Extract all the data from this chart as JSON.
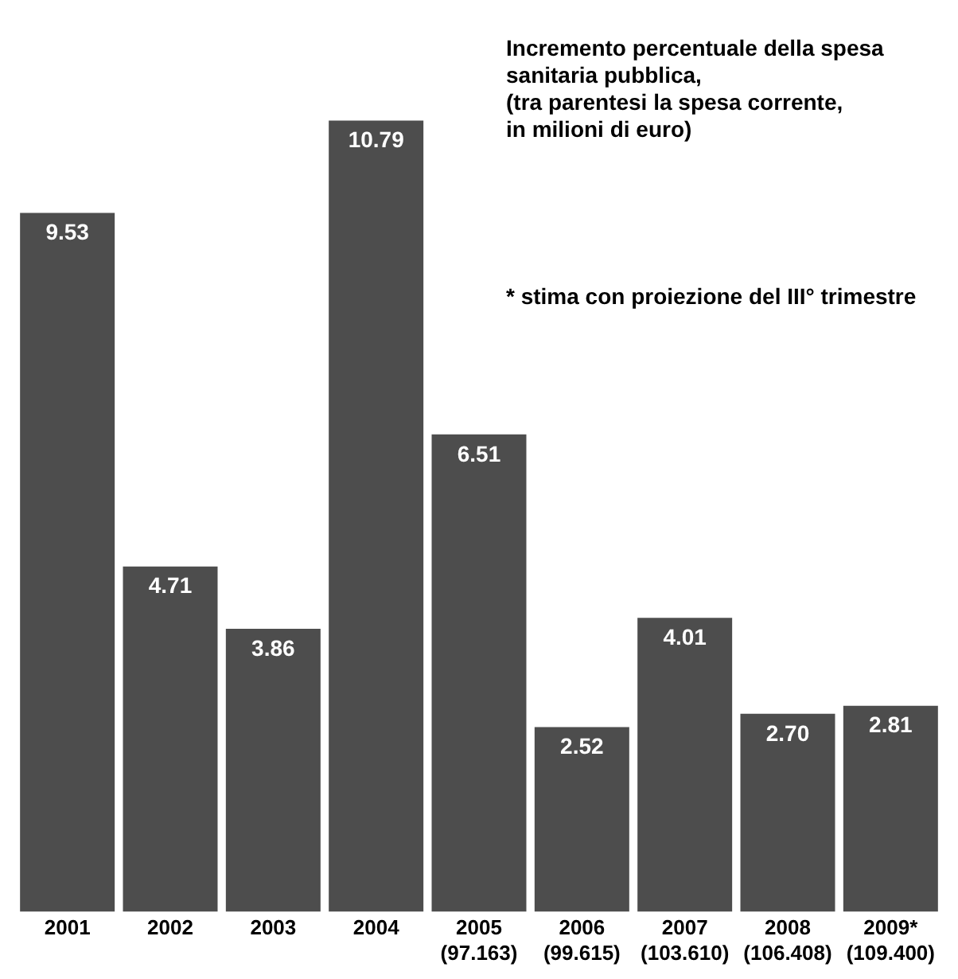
{
  "chart_data": {
    "type": "bar",
    "title": "Incremento percentuale della spesa\nsanitaria pubblica,\n(tra parentesi la spesa corrente,\nin milioni di euro)",
    "annotations": [
      "* stima con proiezione del III° trimestre"
    ],
    "categories": [
      "2001",
      "2002",
      "2003",
      "2004",
      "2005\n(97.163)",
      "2006\n(99.615)",
      "2007\n(103.610)",
      "2008\n(106.408)",
      "2009*\n(109.400)"
    ],
    "values": [
      9.53,
      4.71,
      3.86,
      10.79,
      6.51,
      2.52,
      4.01,
      2.7,
      2.81
    ],
    "value_labels": [
      "9.53",
      "4.71",
      "3.86",
      "10.79",
      "6.51",
      "2.52",
      "4.01",
      "2.70",
      "2.81"
    ],
    "color": "#4d4d4d",
    "grid": false,
    "legend": false
  }
}
